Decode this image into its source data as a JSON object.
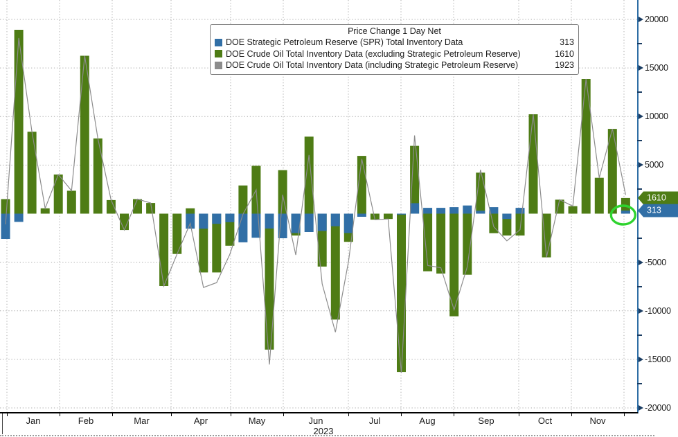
{
  "legend": {
    "title": "Price Change 1 Day Net",
    "items": [
      {
        "label": "DOE Strategic Petroleum Reserve (SPR) Total Inventory Data",
        "value": "313",
        "colorKey": "spr_blue"
      },
      {
        "label": "DOE Crude Oil Total Inventory Data (excluding Strategic Petroleum Reserve)",
        "value": "1610",
        "colorKey": "crude_green"
      },
      {
        "label": "DOE Crude Oil Total Inventory Data (including Strategic Petroleum Reserve)",
        "value": "1923",
        "colorKey": "total_gray"
      }
    ]
  },
  "colors": {
    "spr_blue": "#316fa6",
    "crude_green": "#4e7c15",
    "total_gray": "#8c8c8c",
    "axis_blue": "#2f6ea5",
    "tick_navy": "#1b3d63",
    "grid_gray": "#aaaaaa",
    "highlight_green": "#2ed32e",
    "text": "#1a1a1a"
  },
  "y_axis": {
    "major_ticks": [
      {
        "value": 20000,
        "label": "20000"
      },
      {
        "value": 15000,
        "label": "15000"
      },
      {
        "value": 10000,
        "label": "10000"
      },
      {
        "value": 5000,
        "label": "5000"
      },
      {
        "value": -5000,
        "label": "-5000"
      },
      {
        "value": -10000,
        "label": "-10000"
      },
      {
        "value": -15000,
        "label": "-15000"
      },
      {
        "value": -20000,
        "label": "-20000"
      }
    ],
    "minor_tick_values": [
      22500,
      17500,
      12500,
      7500,
      2500,
      -2500,
      -7500,
      -12500,
      -17500
    ],
    "tags": [
      {
        "text": "1610",
        "value": 1610,
        "colorKey": "crude_green"
      },
      {
        "text": "313",
        "value": 313,
        "colorKey": "spr_blue"
      }
    ]
  },
  "x_axis": {
    "months": [
      "Jan",
      "Feb",
      "Mar",
      "Apr",
      "May",
      "Jun",
      "Jul",
      "Aug",
      "Sep",
      "Oct",
      "Nov"
    ],
    "year": "2023"
  },
  "chart_data": {
    "type": "bar",
    "title": "Price Change 1 Day Net",
    "description": "Weekly DOE petroleum inventory changes, Jan-Nov 2023; green/blue bars with gray total line",
    "ylim": [
      -21500,
      22300
    ],
    "y_tick_values": [
      20000,
      15000,
      10000,
      5000,
      -5000,
      -10000,
      -15000,
      -20000
    ],
    "grid": "dotted, horizontal at majors and vertical at month boundaries",
    "legend_position": "top-center",
    "weeks": 48,
    "series": [
      {
        "name": "DOE Strategic Petroleum Reserve (SPR) Total Inventory Data",
        "style": "bar",
        "colorKey": "spr_blue",
        "latest_value": 313,
        "values": [
          -2600,
          -850,
          0,
          0,
          0,
          0,
          0,
          0,
          0,
          0,
          0,
          0,
          0,
          0,
          -1550,
          -1550,
          -1050,
          -880,
          -2950,
          -2480,
          -1530,
          -2530,
          -2000,
          -1890,
          -1780,
          -1300,
          -2000,
          -320,
          0,
          0,
          -100,
          1080,
          600,
          600,
          670,
          840,
          300,
          670,
          -550,
          600,
          0,
          0,
          0,
          0,
          0,
          0,
          0,
          313
        ]
      },
      {
        "name": "DOE Crude Oil Total Inventory Data (excluding Strategic Petroleum Reserve)",
        "style": "bar",
        "colorKey": "crude_green",
        "latest_value": 1610,
        "values": [
          1500,
          18930,
          8435,
          550,
          4030,
          2360,
          16260,
          7740,
          1400,
          -1680,
          1500,
          1100,
          -7450,
          -4150,
          550,
          -6050,
          -6050,
          -3300,
          2900,
          4930,
          -14000,
          4480,
          -2250,
          7930,
          -5450,
          -10900,
          -2900,
          5950,
          -620,
          -550,
          -16300,
          6980,
          -5930,
          -6170,
          -10570,
          -6290,
          4220,
          -2010,
          -2250,
          -2250,
          10230,
          -4500,
          1440,
          770,
          13870,
          3690,
          8730,
          1610
        ]
      },
      {
        "name": "DOE Crude Oil Total Inventory Data (including Strategic Petroleum Reserve)",
        "style": "line",
        "colorKey": "total_gray",
        "latest_value": 1923,
        "derived": "sum of SPR and ex-SPR bar values per week"
      }
    ],
    "annotation": {
      "shape": "ellipse",
      "meaning": "highlights latest SPR weekly change (+313)",
      "colorKey": "highlight_green"
    }
  }
}
